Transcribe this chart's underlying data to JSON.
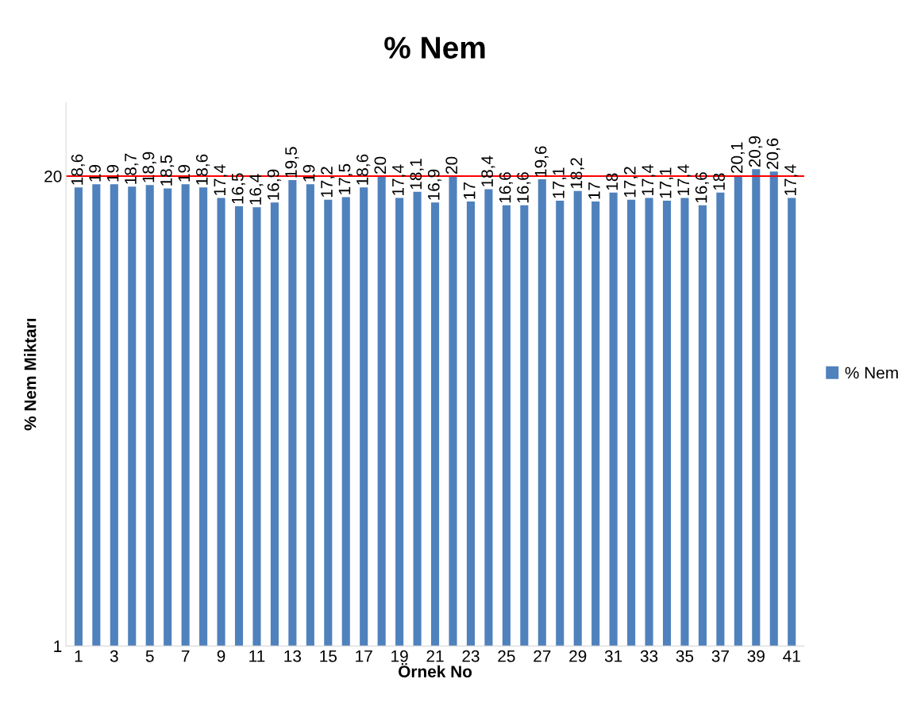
{
  "chart_data": {
    "type": "bar",
    "title": "% Nem",
    "xlabel": "Örnek No",
    "ylabel": "% Nem Miktarı",
    "categories": [
      "1",
      null,
      "3",
      null,
      "5",
      null,
      "7",
      null,
      "9",
      null,
      "11",
      null,
      "13",
      null,
      "15",
      null,
      "17",
      null,
      "19",
      null,
      "21",
      null,
      "23",
      null,
      "25",
      null,
      "27",
      null,
      "29",
      null,
      "31",
      null,
      "33",
      null,
      "35",
      null,
      "37",
      null,
      "39",
      null,
      "41"
    ],
    "series": [
      {
        "name": "% Nem",
        "color": "#4f81bd",
        "values": [
          18.6,
          19,
          19,
          18.7,
          18.9,
          18.5,
          19,
          18.6,
          17.4,
          16.5,
          16.4,
          16.9,
          19.5,
          19,
          17.2,
          17.5,
          18.6,
          20,
          17.4,
          18.1,
          16.9,
          20,
          17,
          18.4,
          16.6,
          16.6,
          19.6,
          17.1,
          18.2,
          17,
          18,
          17.2,
          17.4,
          17.1,
          17.4,
          16.6,
          18,
          20.1,
          20.9,
          20.6,
          17.4
        ],
        "value_labels": [
          "18,6",
          "19",
          "19",
          "18,7",
          "18,9",
          "18,5",
          "19",
          "18,6",
          "17,4",
          "16,5",
          "16,4",
          "16,9",
          "19,5",
          "19",
          "17,2",
          "17,5",
          "18,6",
          "20",
          "17,4",
          "18,1",
          "16,9",
          "20",
          "17",
          "18,4",
          "16,6",
          "16,6",
          "19,6",
          "17,1",
          "18,2",
          "17",
          "18",
          "17,2",
          "17,4",
          "17,1",
          "17,4",
          "16,6",
          "18",
          "20,1",
          "20,9",
          "20,6",
          "17,4"
        ]
      }
    ],
    "log": true,
    "ylim": [
      1,
      32
    ],
    "yticks": [
      1,
      20
    ],
    "grid": false,
    "legend": "right",
    "ref_lines": [
      {
        "axis": "y",
        "value": 20,
        "color": "#ff0000"
      }
    ]
  }
}
